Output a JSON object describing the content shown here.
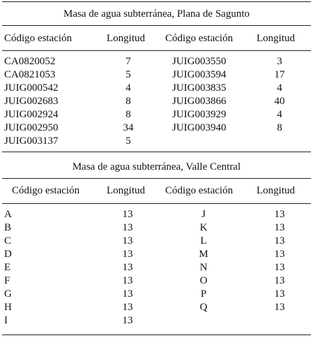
{
  "tables": [
    {
      "title": "Masa de agua subterránea, Plana de Sagunto",
      "headers": [
        "Código estación",
        "Longitud",
        "Código estación",
        "Longitud"
      ],
      "left_rows": [
        {
          "code": "CA0820052",
          "length": "7"
        },
        {
          "code": "CA0821053",
          "length": "5"
        },
        {
          "code": "JUIG000542",
          "length": "4"
        },
        {
          "code": "JUIG002683",
          "length": "8"
        },
        {
          "code": "JUIG002924",
          "length": "8"
        },
        {
          "code": "JUIG002950",
          "length": "34"
        },
        {
          "code": "JUIG003137",
          "length": "5"
        }
      ],
      "right_rows": [
        {
          "code": "JUIG003550",
          "length": "3"
        },
        {
          "code": "JUIG003594",
          "length": "17"
        },
        {
          "code": "JUIG003835",
          "length": "4"
        },
        {
          "code": "JUIG003866",
          "length": "40"
        },
        {
          "code": "JUIG003929",
          "length": "4"
        },
        {
          "code": "JUIG003940",
          "length": "8"
        }
      ]
    },
    {
      "title": "Masa de agua subterránea, Valle Central",
      "headers": [
        "Código estación",
        "Longitud",
        "Código estación",
        "Longitud"
      ],
      "left_rows": [
        {
          "code": "A",
          "length": "13"
        },
        {
          "code": "B",
          "length": "13"
        },
        {
          "code": "C",
          "length": "13"
        },
        {
          "code": "D",
          "length": "13"
        },
        {
          "code": "E",
          "length": "13"
        },
        {
          "code": "F",
          "length": "13"
        },
        {
          "code": "G",
          "length": "13"
        },
        {
          "code": "H",
          "length": "13"
        },
        {
          "code": "I",
          "length": "13"
        }
      ],
      "right_rows": [
        {
          "code": "J",
          "length": "13"
        },
        {
          "code": "K",
          "length": "13"
        },
        {
          "code": "L",
          "length": "13"
        },
        {
          "code": "M",
          "length": "13"
        },
        {
          "code": "N",
          "length": "13"
        },
        {
          "code": "O",
          "length": "13"
        },
        {
          "code": "P",
          "length": "13"
        },
        {
          "code": "Q",
          "length": "13"
        }
      ]
    }
  ]
}
